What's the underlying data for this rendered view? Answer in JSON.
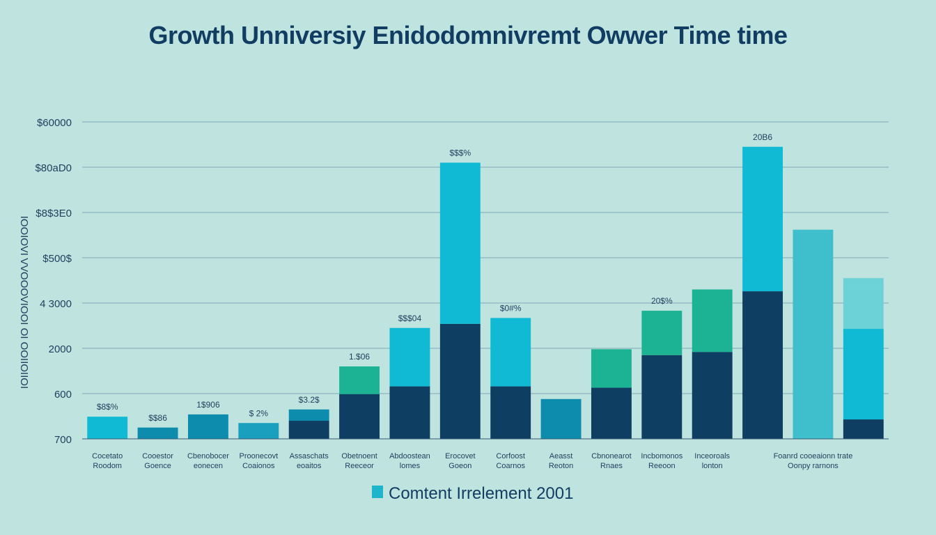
{
  "chart_data": {
    "type": "bar",
    "title": "Growth Unniversiy Enidodomnivremt Owwer Time time",
    "ylabel": "ΙΟΙΙΟΙΙΟΟ ΙΟ ΙΟΟΙΛΟΟΟΛΛ ΙΛΟΙΟΟΙ",
    "y_tick_labels": [
      "700",
      "600",
      "2000",
      "4 3000",
      "$500$",
      "$8$3E0",
      "$80aD0",
      "$60000"
    ],
    "ylim": [
      0,
      7
    ],
    "grid": true,
    "legend_position": "bottom-center",
    "legend": [
      {
        "label": "Comtent Irrelement 2001",
        "color": "#1db4cc"
      }
    ],
    "colors": {
      "dark": "#0e3f63",
      "cyan": "#10b9d4",
      "teal": "#1cb394",
      "mid": "#0e8cad",
      "mid2": "#1aa0be",
      "light": "#3fbfcc",
      "pale": "#6dd2d8"
    },
    "bars": [
      {
        "category": [
          "Cocetato",
          "Roodom"
        ],
        "label": "$8$%",
        "total": 0.49,
        "segments": [
          {
            "value": 0.49,
            "color": "cyan"
          }
        ]
      },
      {
        "category": [
          "Cooestor",
          "Goence"
        ],
        "label": "$$86",
        "total": 0.25,
        "segments": [
          {
            "value": 0.25,
            "color": "mid"
          }
        ]
      },
      {
        "category": [
          "Cbenobocer",
          "eonecen"
        ],
        "label": "1$906",
        "total": 0.54,
        "segments": [
          {
            "value": 0.54,
            "color": "mid"
          }
        ]
      },
      {
        "category": [
          "Proonecovt",
          "Coaionos"
        ],
        "label": "$ 2%",
        "total": 0.35,
        "segments": [
          {
            "value": 0.35,
            "color": "mid2"
          }
        ]
      },
      {
        "category": [
          "Assaschats",
          "eoaitos"
        ],
        "label": "$3.2$",
        "total": 0.65,
        "segments": [
          {
            "value": 0.4,
            "color": "dark"
          },
          {
            "value": 0.25,
            "color": "mid"
          }
        ]
      },
      {
        "category": [
          "Obetnoent",
          "Reeceor"
        ],
        "label": "1.$06",
        "total": 1.6,
        "segments": [
          {
            "value": 0.99,
            "color": "dark"
          },
          {
            "value": 0.61,
            "color": "teal"
          }
        ]
      },
      {
        "category": [
          "Abdoostean",
          "lomes"
        ],
        "label": "$$$04",
        "total": 2.45,
        "segments": [
          {
            "value": 1.16,
            "color": "dark"
          },
          {
            "value": 1.29,
            "color": "cyan"
          }
        ]
      },
      {
        "category": [
          "Erocovet",
          "Goeon"
        ],
        "label": "$$$%",
        "total": 6.1,
        "segments": [
          {
            "value": 2.54,
            "color": "dark"
          },
          {
            "value": 3.56,
            "color": "cyan"
          }
        ]
      },
      {
        "category": [
          "Corfoost",
          "Coarnos"
        ],
        "label": "$0#%",
        "total": 2.67,
        "segments": [
          {
            "value": 1.16,
            "color": "dark"
          },
          {
            "value": 1.51,
            "color": "cyan"
          }
        ]
      },
      {
        "category": [
          "Aeasst",
          "Reoton"
        ],
        "label": "",
        "total": 0.88,
        "segments": [
          {
            "value": 0.88,
            "color": "mid"
          }
        ]
      },
      {
        "category": [
          "Cbnonearot",
          "Rnaes"
        ],
        "label": "",
        "total": 1.98,
        "segments": [
          {
            "value": 1.13,
            "color": "dark"
          },
          {
            "value": 0.85,
            "color": "teal"
          }
        ]
      },
      {
        "category": [
          "Incbomonos",
          "Reeoon"
        ],
        "label": "20$%",
        "total": 2.83,
        "segments": [
          {
            "value": 1.85,
            "color": "dark"
          },
          {
            "value": 0.98,
            "color": "teal"
          }
        ]
      },
      {
        "category": [
          "Inceoroals",
          "lonton"
        ],
        "label": "",
        "total": 3.3,
        "segments": [
          {
            "value": 1.92,
            "color": "dark"
          },
          {
            "value": 1.38,
            "color": "teal"
          }
        ]
      },
      {
        "category": [],
        "label": "20B6",
        "total": 6.45,
        "segments": [
          {
            "value": 3.26,
            "color": "dark"
          },
          {
            "value": 3.19,
            "color": "cyan"
          }
        ]
      },
      {
        "category": [
          "Foanrd cooeaionn trate",
          "Oonpy rarnons"
        ],
        "label": "",
        "total": 4.62,
        "segments": [
          {
            "value": 4.62,
            "color": "light"
          }
        ]
      },
      {
        "category": [],
        "label": "",
        "total": 3.55,
        "segments": [
          {
            "value": 0.43,
            "color": "dark"
          },
          {
            "value": 2.0,
            "color": "cyan"
          },
          {
            "value": 0.9,
            "color": "pale"
          },
          {
            "value": 0.22,
            "color": "pale"
          }
        ]
      }
    ]
  }
}
